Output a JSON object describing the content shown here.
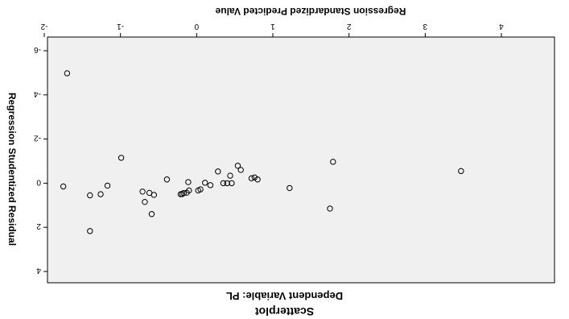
{
  "chart_data": {
    "type": "scatter",
    "orientation": "rotated-180",
    "title": "Scatterplot",
    "subtitle": "Dependent Variable: PL",
    "xlabel": "Regression Standardized Predicted Value",
    "ylabel": "Regression Studentized Residual",
    "xlim": [
      -2,
      4
    ],
    "ylim": [
      -6,
      4
    ],
    "xticks": [
      "-2",
      "-1",
      "0",
      "1",
      "2",
      "3",
      "4"
    ],
    "yticks": [
      "-6",
      "-4",
      "-2",
      "0",
      "2",
      "4"
    ],
    "xtick_values": [
      -2,
      -1,
      0,
      1,
      2,
      3,
      4
    ],
    "ytick_values": [
      -6,
      -4,
      -2,
      0,
      2,
      4
    ],
    "grid": false,
    "background": "#f0f0f0",
    "marker_color": "#000000",
    "points": [
      {
        "x": -1.7,
        "y": -4.98
      },
      {
        "x": -1.75,
        "y": 0.15
      },
      {
        "x": -1.4,
        "y": 0.55
      },
      {
        "x": -1.26,
        "y": 0.5
      },
      {
        "x": -1.17,
        "y": 0.11
      },
      {
        "x": -1.4,
        "y": 2.17
      },
      {
        "x": -0.99,
        "y": -1.15
      },
      {
        "x": -0.71,
        "y": 0.38
      },
      {
        "x": -0.68,
        "y": 0.85
      },
      {
        "x": -0.62,
        "y": 0.44
      },
      {
        "x": -0.59,
        "y": 1.4
      },
      {
        "x": -0.56,
        "y": 0.53
      },
      {
        "x": -0.39,
        "y": -0.17
      },
      {
        "x": -0.21,
        "y": 0.5
      },
      {
        "x": -0.19,
        "y": 0.49
      },
      {
        "x": -0.17,
        "y": 0.45
      },
      {
        "x": -0.13,
        "y": 0.43
      },
      {
        "x": -0.11,
        "y": -0.05
      },
      {
        "x": -0.1,
        "y": 0.33
      },
      {
        "x": 0.02,
        "y": 0.33
      },
      {
        "x": 0.05,
        "y": 0.28
      },
      {
        "x": 0.11,
        "y": -0.02
      },
      {
        "x": 0.18,
        "y": 0.09
      },
      {
        "x": 0.28,
        "y": -0.53
      },
      {
        "x": 0.35,
        "y": 0.0
      },
      {
        "x": 0.4,
        "y": 0.0
      },
      {
        "x": 0.44,
        "y": -0.34
      },
      {
        "x": 0.46,
        "y": 0.0
      },
      {
        "x": 0.54,
        "y": -0.79
      },
      {
        "x": 0.58,
        "y": -0.6
      },
      {
        "x": 0.72,
        "y": -0.22
      },
      {
        "x": 0.76,
        "y": -0.26
      },
      {
        "x": 0.8,
        "y": -0.17
      },
      {
        "x": 1.22,
        "y": 0.22
      },
      {
        "x": 1.75,
        "y": 1.15
      },
      {
        "x": 1.79,
        "y": -0.97
      },
      {
        "x": 3.47,
        "y": -0.55
      }
    ]
  }
}
